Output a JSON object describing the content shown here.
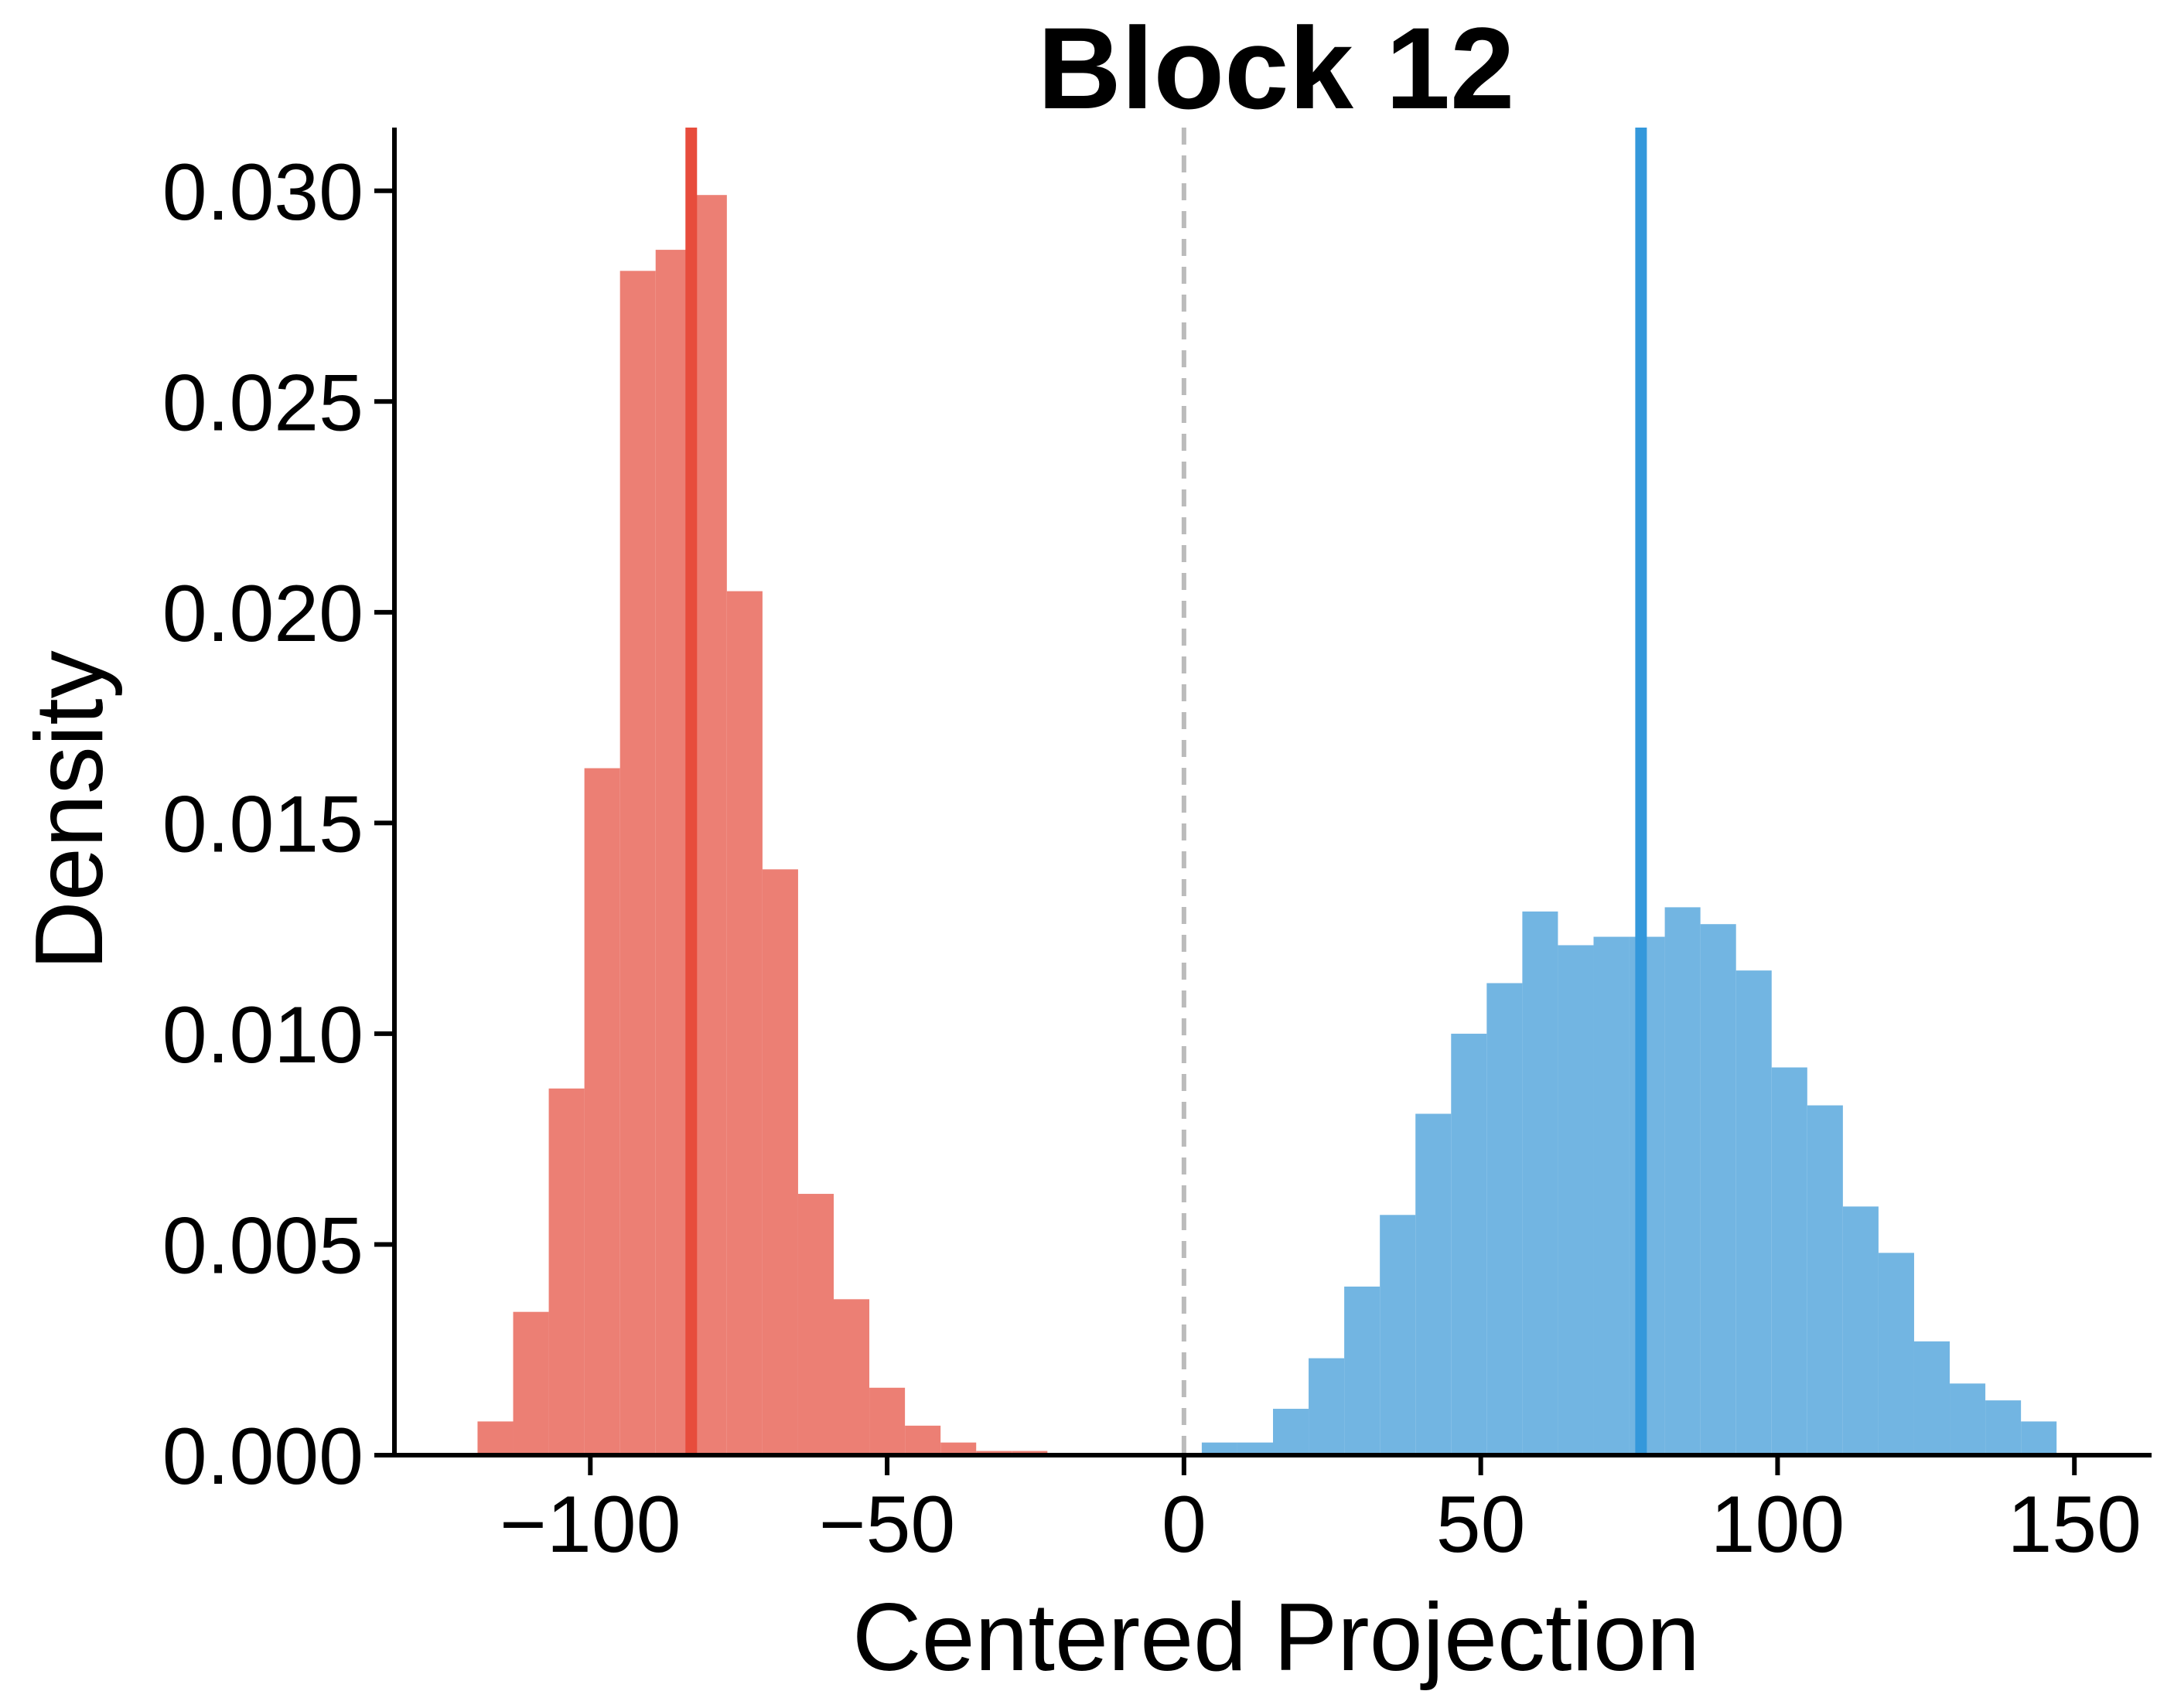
{
  "chart_data": {
    "type": "histogram",
    "title": "Block 12",
    "xlabel": "Centered Projection",
    "ylabel": "Density",
    "xlim": [
      -133,
      163
    ],
    "ylim": [
      0,
      0.0315
    ],
    "xticks": [
      -100,
      -50,
      0,
      50,
      100,
      150
    ],
    "xtick_labels": [
      "−100",
      "−50",
      "0",
      "50",
      "100",
      "150"
    ],
    "yticks": [
      0,
      0.005,
      0.01,
      0.015,
      0.02,
      0.025,
      0.03
    ],
    "ytick_labels": [
      "0.000",
      "0.005",
      "0.010",
      "0.015",
      "0.020",
      "0.025",
      "0.030"
    ],
    "grid": false,
    "threshold_line": {
      "x": 0,
      "style": "dashed",
      "color": "#bbbbbb"
    },
    "series": [
      {
        "color": "#ec7f74",
        "mean": -83,
        "mean_color": "#e74c3c",
        "bin_edges": [
          -119,
          -113,
          -107,
          -101,
          -95,
          -89,
          -83,
          -77,
          -71,
          -65,
          -59,
          -53,
          -47,
          -41,
          -35,
          -29,
          -23
        ],
        "density": [
          0.0008,
          0.0034,
          0.0087,
          0.0163,
          0.0281,
          0.0286,
          0.0299,
          0.0205,
          0.0139,
          0.0062,
          0.0037,
          0.0016,
          0.0007,
          0.0003,
          0.0001,
          0.0001
        ]
      },
      {
        "color": "#72b5e2",
        "mean": 77,
        "mean_color": "#3498db",
        "bin_edges": [
          3,
          9,
          15,
          21,
          27,
          33,
          39,
          45,
          51,
          57,
          63,
          69,
          75,
          81,
          87,
          93,
          99,
          105,
          111,
          117,
          123,
          129,
          135,
          141,
          147
        ],
        "density": [
          0.0003,
          0.0003,
          0.0011,
          0.0023,
          0.004,
          0.0057,
          0.0081,
          0.01,
          0.0112,
          0.0129,
          0.0121,
          0.0123,
          0.0123,
          0.013,
          0.0126,
          0.0115,
          0.0092,
          0.0083,
          0.0059,
          0.0048,
          0.0027,
          0.0017,
          0.0013,
          0.0008
        ]
      }
    ]
  }
}
